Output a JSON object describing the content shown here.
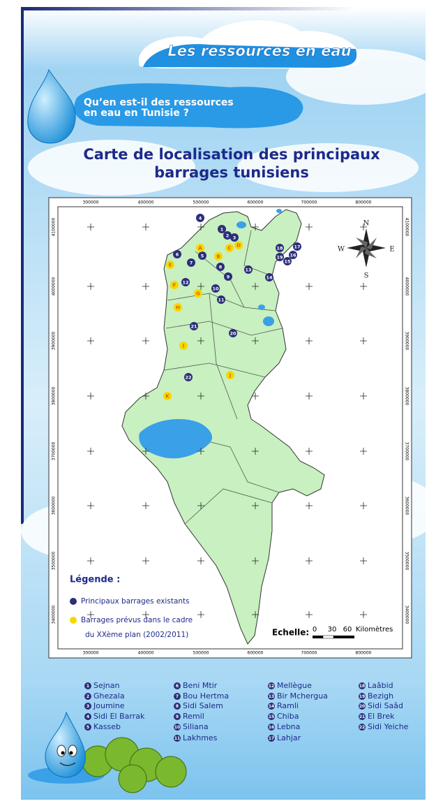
{
  "header": {
    "title": "Les ressources en eau",
    "question": [
      "Qu’en est-il des ressources",
      "en eau en Tunisie ?"
    ]
  },
  "map": {
    "title": [
      "Carte de localisation des principaux",
      "barrages tunisiens"
    ],
    "x_ticks": [
      "300000",
      "400000",
      "500000",
      "600000",
      "700000",
      "800000"
    ],
    "y_ticks": [
      "4100000",
      "4000000",
      "3900000",
      "3800000",
      "3700000",
      "3600000",
      "3500000",
      "3400000"
    ],
    "compass": {
      "north": "N",
      "south": "S",
      "east": "E",
      "west": "W"
    },
    "existing_dams": [
      "1",
      "2",
      "3",
      "4",
      "5",
      "6",
      "7",
      "8",
      "9",
      "10",
      "11",
      "12",
      "13",
      "14",
      "15",
      "16",
      "17",
      "18",
      "19",
      "20",
      "21",
      "22"
    ],
    "planned_dams": [
      "A",
      "B",
      "C",
      "D",
      "E",
      "F",
      "G",
      "H",
      "I",
      "J",
      "K"
    ],
    "legend": {
      "title": "Légende :",
      "existing": "Principaux barrages existants",
      "planned": [
        "Barrages prévus dans le cadre",
        "du XXème plan (2002/2011)"
      ]
    },
    "scale": {
      "label": "Echelle:",
      "ticks": [
        "0",
        "30",
        "60"
      ],
      "unit": "Kilomètres"
    }
  },
  "dam_list": [
    {
      "number": "1",
      "name": "Sejnan"
    },
    {
      "number": "2",
      "name": "Ghezala"
    },
    {
      "number": "3",
      "name": "Joumine"
    },
    {
      "number": "4",
      "name": "Sidi El Barrak"
    },
    {
      "number": "5",
      "name": "Kasseb"
    },
    {
      "number": "6",
      "name": "Beni Mtir"
    },
    {
      "number": "7",
      "name": "Bou Hertma"
    },
    {
      "number": "8",
      "name": "Sidi Salem"
    },
    {
      "number": "9",
      "name": "Remil"
    },
    {
      "number": "10",
      "name": "Siliana"
    },
    {
      "number": "11",
      "name": "Lakhmes"
    },
    {
      "number": "12",
      "name": "Mellègue"
    },
    {
      "number": "13",
      "name": "Bir Mchergua"
    },
    {
      "number": "14",
      "name": "Ramli"
    },
    {
      "number": "15",
      "name": "Chiba"
    },
    {
      "number": "16",
      "name": "Lebna"
    },
    {
      "number": "17",
      "name": "Lahjar"
    },
    {
      "number": "18",
      "name": "Laâbid"
    },
    {
      "number": "19",
      "name": "Bezigh"
    },
    {
      "number": "20",
      "name": "Sidi Saâd"
    },
    {
      "number": "21",
      "name": "El Brek"
    },
    {
      "number": "22",
      "name": "Sidi Yeiche"
    }
  ]
}
